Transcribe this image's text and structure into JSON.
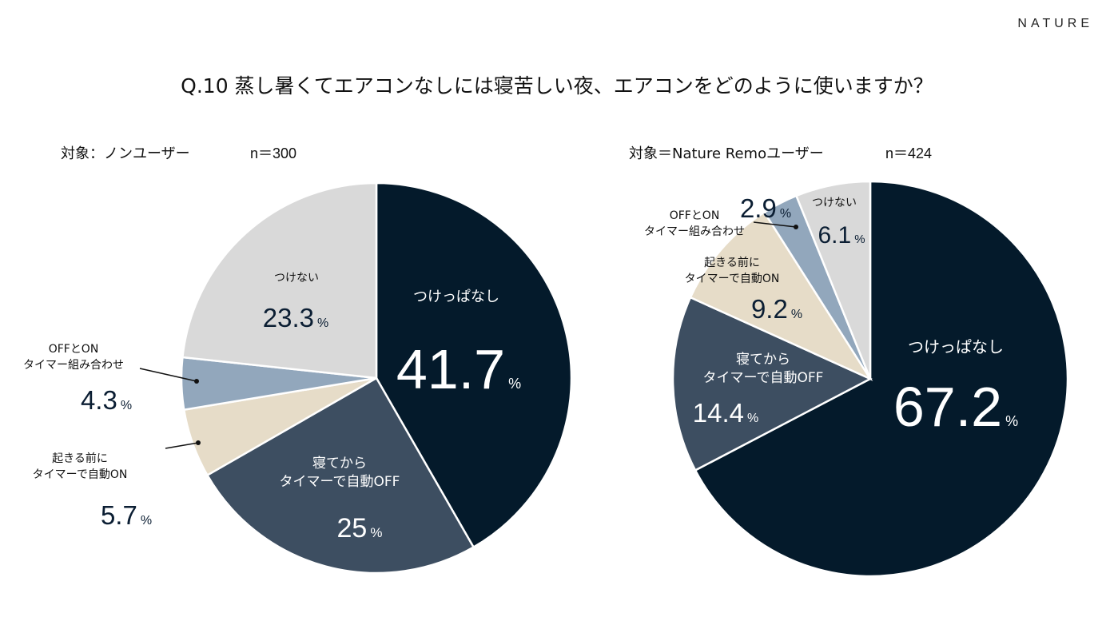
{
  "brand": "NATURE",
  "title": "Q.10 蒸し暑くてエアコンなしには寝苦しい夜、エアコンをどのように使いますか？",
  "colors": {
    "navy": "#041A2B",
    "slate": "#3D4E61",
    "beige": "#E6DCC8",
    "blue_gray": "#92A7BC",
    "light_gray": "#D9D9D9"
  },
  "percent_sign": "%",
  "chart_data": [
    {
      "type": "pie",
      "target_label": "対象：ノンユーザー",
      "n_label": "n＝300",
      "slices": [
        {
          "label": "つけっぱなし",
          "value": 41.7,
          "value_text": "41.7",
          "color": "#041A2B"
        },
        {
          "label": "寝てから\nタイマーで自動OFF",
          "value": 25,
          "value_text": "25",
          "color": "#3D4E61"
        },
        {
          "label": "起きる前に\nタイマーで自動ON",
          "value": 5.7,
          "value_text": "5.7",
          "color": "#E6DCC8"
        },
        {
          "label": "OFFとON\nタイマー組み合わせ",
          "value": 4.3,
          "value_text": "4.3",
          "color": "#92A7BC"
        },
        {
          "label": "つけない",
          "value": 23.3,
          "value_text": "23.3",
          "color": "#D9D9D9"
        }
      ]
    },
    {
      "type": "pie",
      "target_label": "対象＝Nature Remoユーザー",
      "n_label": "n＝424",
      "slices": [
        {
          "label": "つけっぱなし",
          "value": 67.2,
          "value_text": "67.2",
          "color": "#041A2B"
        },
        {
          "label": "寝てから\nタイマーで自動OFF",
          "value": 14.4,
          "value_text": "14.4",
          "color": "#3D4E61"
        },
        {
          "label": "起きる前に\nタイマーで自動ON",
          "value": 9.2,
          "value_text": "9.2",
          "color": "#E6DCC8"
        },
        {
          "label": "OFFとON\nタイマー組み合わせ",
          "value": 2.9,
          "value_text": "2.9",
          "color": "#92A7BC"
        },
        {
          "label": "つけない",
          "value": 6.1,
          "value_text": "6.1",
          "color": "#D9D9D9"
        }
      ]
    }
  ]
}
